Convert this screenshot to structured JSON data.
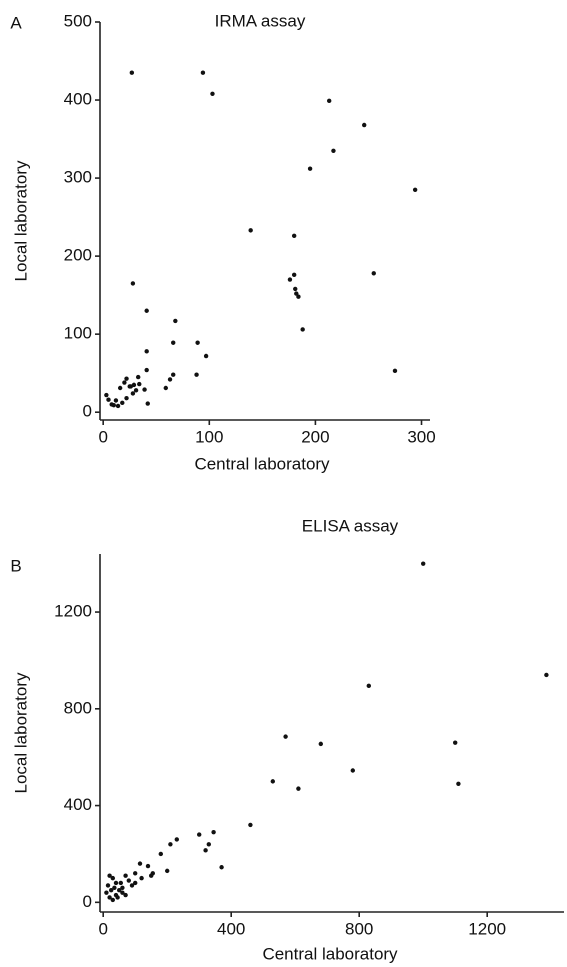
{
  "chart_data": [
    {
      "type": "scatter",
      "panel_label": "A",
      "title": "IRMA assay",
      "x_label": "Central laboratory",
      "y_label": "Local laboratory",
      "color": "#111111",
      "xlim": [
        -3,
        308
      ],
      "ylim": [
        -10,
        500
      ],
      "xticks": [
        0,
        100,
        200,
        300
      ],
      "yticks": [
        0,
        100,
        200,
        300,
        400,
        500
      ],
      "grid": false,
      "x": [
        27,
        94,
        103,
        213,
        246,
        217,
        195,
        294,
        139,
        180,
        28,
        255,
        176,
        180,
        181,
        182,
        184,
        188,
        275,
        41,
        68,
        66,
        89,
        97,
        41,
        41,
        88,
        66,
        63,
        59,
        42,
        34,
        29,
        26,
        31,
        39,
        33,
        22,
        20,
        16,
        12,
        8,
        5,
        3,
        10,
        14,
        18,
        25,
        22,
        28
      ],
      "values": [
        435,
        435,
        408,
        399,
        368,
        335,
        312,
        285,
        233,
        226,
        165,
        178,
        170,
        176,
        158,
        152,
        148,
        106,
        53,
        130,
        117,
        89,
        89,
        72,
        78,
        54,
        48,
        48,
        42,
        31,
        11,
        36,
        35,
        33,
        28,
        29,
        45,
        43,
        38,
        31,
        15,
        10,
        16,
        22,
        9,
        8,
        12,
        33,
        18,
        24
      ]
    },
    {
      "type": "scatter",
      "panel_label": "B",
      "title": "ELISA assay",
      "x_label": "Central laboratory",
      "y_label": "Local laboratory",
      "color": "#111111",
      "xlim": [
        -10,
        1440
      ],
      "ylim": [
        -40,
        1440
      ],
      "xticks": [
        0,
        400,
        800,
        1200
      ],
      "yticks": [
        0,
        400,
        800,
        1200
      ],
      "grid": false,
      "x": [
        1000,
        1385,
        830,
        570,
        680,
        1100,
        780,
        1110,
        530,
        610,
        460,
        300,
        345,
        330,
        320,
        370,
        230,
        210,
        180,
        200,
        155,
        140,
        115,
        100,
        80,
        70,
        60,
        50,
        40,
        30,
        20,
        10,
        20,
        30,
        40,
        45,
        25,
        60,
        55,
        90,
        120,
        150,
        35,
        15,
        70,
        100
      ],
      "values": [
        1400,
        940,
        895,
        685,
        655,
        660,
        545,
        490,
        500,
        470,
        320,
        280,
        290,
        240,
        215,
        145,
        260,
        240,
        200,
        130,
        120,
        150,
        160,
        120,
        90,
        110,
        60,
        50,
        80,
        100,
        110,
        40,
        20,
        10,
        30,
        20,
        50,
        40,
        80,
        70,
        100,
        110,
        60,
        70,
        30,
        80
      ]
    }
  ]
}
